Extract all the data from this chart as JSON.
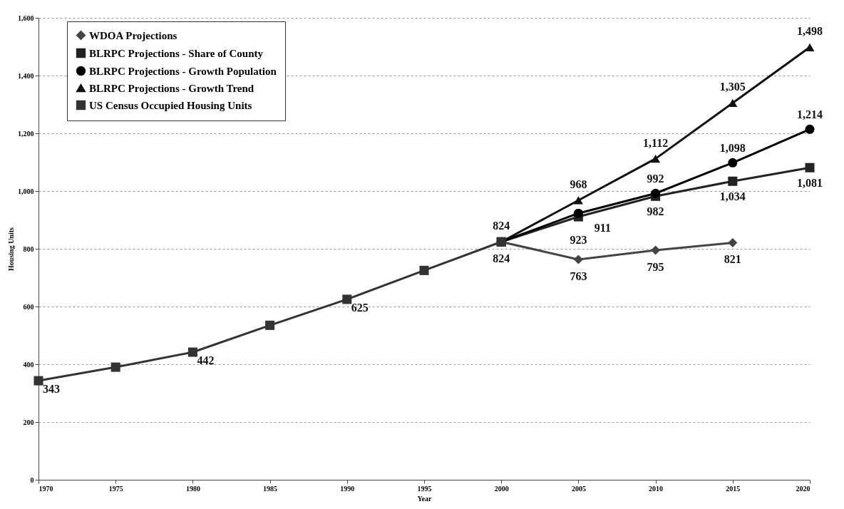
{
  "chart_data": {
    "type": "line",
    "xlabel": "Year",
    "ylabel": "Housing Units",
    "x": [
      1970,
      1975,
      1980,
      1985,
      1990,
      1995,
      2000,
      2005,
      2010,
      2015,
      2020
    ],
    "xlim": [
      1970,
      2020
    ],
    "xticks": [
      1970,
      1975,
      1980,
      1985,
      1990,
      1995,
      2000,
      2005,
      2010,
      2015,
      2020
    ],
    "ylim": [
      0,
      1600
    ],
    "yticks": [
      0,
      200,
      400,
      600,
      800,
      {
        "value": 1000,
        "label": "1,000"
      },
      {
        "value": 1200,
        "label": "1,200"
      },
      {
        "value": 1400,
        "label": "1,400"
      },
      {
        "value": 1600,
        "label": "1,600"
      }
    ],
    "grid": "y",
    "legend": "top left",
    "line_style": "solid",
    "series": [
      {
        "name": "WDOA Projections",
        "color": "#444444",
        "marker": "diamond",
        "values": [
          null,
          null,
          null,
          null,
          null,
          null,
          824,
          763,
          795,
          821,
          null
        ],
        "value_labels": [
          null,
          null,
          null,
          null,
          null,
          null,
          "824",
          "763",
          "795",
          "821",
          null
        ]
      },
      {
        "name": "BLRPC Projections - Share of County",
        "color": "#222222",
        "marker": "square",
        "values": [
          null,
          null,
          null,
          null,
          null,
          null,
          824,
          911,
          982,
          1034,
          1081
        ],
        "value_labels": [
          null,
          null,
          null,
          null,
          null,
          null,
          null,
          "911",
          "982",
          "1,034",
          "1,081"
        ]
      },
      {
        "name": "BLRPC Projections - Growth Population",
        "color": "#000000",
        "marker": "circle",
        "values": [
          null,
          null,
          null,
          null,
          null,
          null,
          824,
          923,
          992,
          1098,
          1214
        ],
        "value_labels": [
          null,
          null,
          null,
          null,
          null,
          null,
          null,
          "923",
          "992",
          "1,098",
          "1,214"
        ]
      },
      {
        "name": "BLRPC Projections - Growth  Trend",
        "color": "#111111",
        "marker": "triangle",
        "values": [
          null,
          null,
          null,
          null,
          null,
          null,
          824,
          968,
          1112,
          1305,
          1498
        ],
        "value_labels": [
          null,
          null,
          null,
          null,
          null,
          null,
          "824",
          "968",
          "1,112",
          "1,305",
          "1,498"
        ]
      },
      {
        "name": "US Census Occupied Housing Units",
        "color": "#333333",
        "marker": "square",
        "values": [
          343,
          390,
          442,
          535,
          625,
          725,
          824,
          null,
          null,
          null,
          null
        ],
        "value_labels": [
          "343",
          null,
          "442",
          null,
          "625",
          null,
          null,
          null,
          null,
          null,
          null
        ]
      }
    ]
  }
}
